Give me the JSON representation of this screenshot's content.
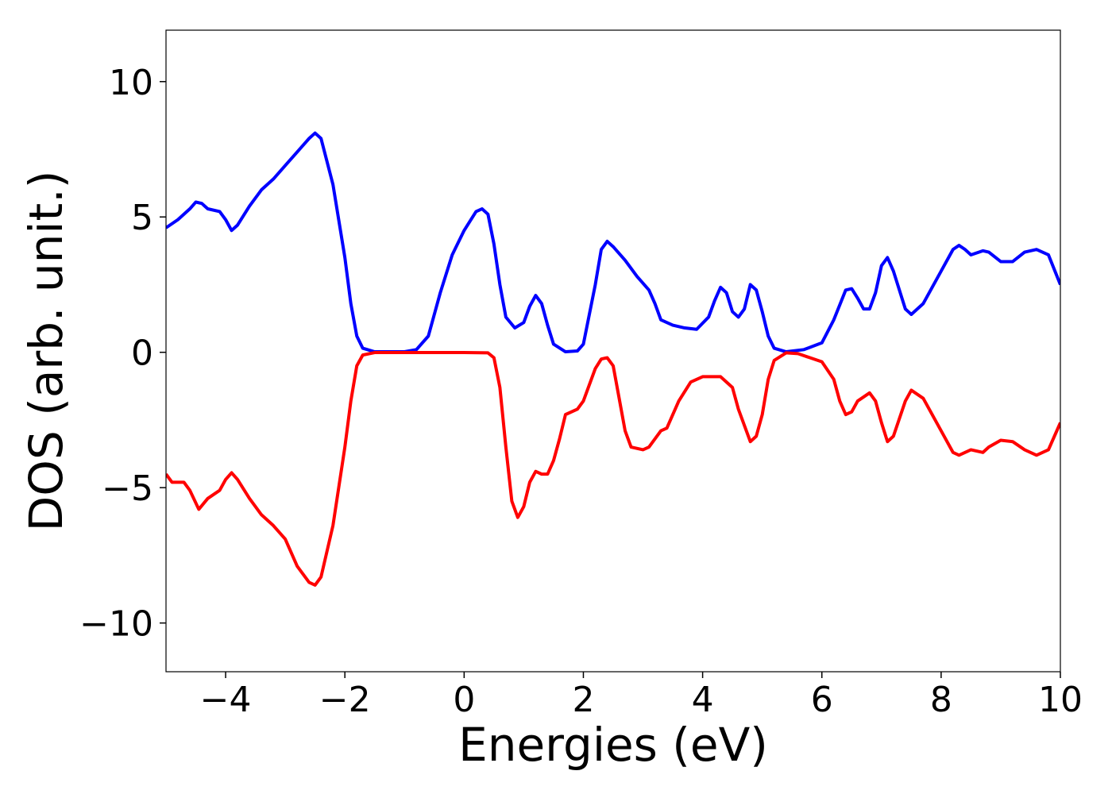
{
  "chart_data": {
    "type": "line",
    "xlabel": "Energies (eV)",
    "ylabel": "DOS (arb. unit.)",
    "xlim": [
      -5,
      10
    ],
    "ylim": [
      -11.8,
      11.9
    ],
    "xticks": [
      {
        "value": -4,
        "label": "−4"
      },
      {
        "value": -2,
        "label": "−2"
      },
      0,
      2,
      4,
      6,
      8,
      10
    ],
    "yticks": [
      {
        "value": -10,
        "label": "−10"
      },
      {
        "value": -5,
        "label": "−5"
      },
      0,
      5,
      10
    ],
    "grid": false,
    "series": [
      {
        "color": "#0000ff",
        "x": [
          -5,
          -4.8,
          -4.6,
          -4.5,
          -4.4,
          -4.3,
          -4.1,
          -4.0,
          -3.9,
          -3.8,
          -3.6,
          -3.4,
          -3.2,
          -3.0,
          -2.8,
          -2.6,
          -2.5,
          -2.4,
          -2.2,
          -2.0,
          -1.9,
          -1.8,
          -1.7,
          -1.5,
          -1.0,
          -0.8,
          -0.6,
          -0.4,
          -0.2,
          0,
          0.2,
          0.3,
          0.4,
          0.5,
          0.6,
          0.7,
          0.85,
          1.0,
          1.1,
          1.2,
          1.3,
          1.4,
          1.5,
          1.7,
          1.9,
          2.0,
          2.2,
          2.3,
          2.4,
          2.5,
          2.7,
          2.9,
          3.1,
          3.2,
          3.3,
          3.5,
          3.7,
          3.9,
          4.1,
          4.2,
          4.3,
          4.4,
          4.5,
          4.6,
          4.7,
          4.8,
          4.9,
          5.0,
          5.1,
          5.2,
          5.4,
          5.7,
          6.0,
          6.2,
          6.4,
          6.5,
          6.6,
          6.7,
          6.8,
          6.9,
          7.0,
          7.1,
          7.2,
          7.4,
          7.5,
          7.7,
          8.0,
          8.2,
          8.3,
          8.4,
          8.5,
          8.7,
          8.8,
          9.0,
          9.2,
          9.4,
          9.6,
          9.8,
          10
        ],
        "values": [
          4.6,
          4.9,
          5.3,
          5.55,
          5.5,
          5.3,
          5.2,
          4.9,
          4.5,
          4.7,
          5.4,
          6.0,
          6.4,
          6.9,
          7.4,
          7.9,
          8.1,
          7.9,
          6.2,
          3.5,
          1.8,
          0.6,
          0.15,
          0.02,
          0.02,
          0.1,
          0.6,
          2.2,
          3.6,
          4.5,
          5.2,
          5.3,
          5.1,
          4.0,
          2.5,
          1.3,
          0.9,
          1.1,
          1.7,
          2.1,
          1.8,
          1.0,
          0.3,
          0.02,
          0.05,
          0.3,
          2.5,
          3.8,
          4.1,
          3.9,
          3.4,
          2.8,
          2.3,
          1.8,
          1.2,
          1.0,
          0.9,
          0.85,
          1.3,
          1.9,
          2.4,
          2.2,
          1.5,
          1.3,
          1.6,
          2.5,
          2.3,
          1.5,
          0.6,
          0.15,
          0.02,
          0.1,
          0.35,
          1.2,
          2.3,
          2.35,
          2.0,
          1.6,
          1.6,
          2.2,
          3.2,
          3.5,
          3.0,
          1.6,
          1.4,
          1.8,
          3.0,
          3.8,
          3.95,
          3.8,
          3.6,
          3.75,
          3.7,
          3.35,
          3.35,
          3.7,
          3.8,
          3.6,
          2.5
        ]
      },
      {
        "color": "#ff0000",
        "x": [
          -5,
          -4.9,
          -4.7,
          -4.6,
          -4.45,
          -4.3,
          -4.1,
          -4.0,
          -3.9,
          -3.8,
          -3.6,
          -3.4,
          -3.2,
          -3.0,
          -2.8,
          -2.6,
          -2.5,
          -2.4,
          -2.2,
          -2.0,
          -1.9,
          -1.8,
          -1.7,
          -1.5,
          0,
          0.4,
          0.5,
          0.6,
          0.7,
          0.8,
          0.9,
          1.0,
          1.1,
          1.2,
          1.3,
          1.4,
          1.5,
          1.6,
          1.7,
          1.9,
          2.0,
          2.2,
          2.3,
          2.4,
          2.5,
          2.6,
          2.7,
          2.8,
          3.0,
          3.1,
          3.3,
          3.4,
          3.6,
          3.8,
          4.0,
          4.3,
          4.5,
          4.6,
          4.8,
          4.9,
          5.0,
          5.1,
          5.2,
          5.4,
          5.6,
          5.8,
          6.0,
          6.2,
          6.3,
          6.4,
          6.5,
          6.6,
          6.8,
          6.9,
          7.0,
          7.1,
          7.2,
          7.4,
          7.5,
          7.7,
          8.0,
          8.2,
          8.3,
          8.5,
          8.7,
          8.8,
          9.0,
          9.2,
          9.4,
          9.6,
          9.8,
          10
        ],
        "values": [
          -4.5,
          -4.8,
          -4.8,
          -5.1,
          -5.8,
          -5.4,
          -5.1,
          -4.7,
          -4.45,
          -4.7,
          -5.4,
          -6.0,
          -6.4,
          -6.9,
          -7.9,
          -8.5,
          -8.6,
          -8.3,
          -6.4,
          -3.5,
          -1.8,
          -0.5,
          -0.1,
          -0.01,
          -0.01,
          -0.02,
          -0.2,
          -1.3,
          -3.5,
          -5.5,
          -6.1,
          -5.7,
          -4.8,
          -4.4,
          -4.5,
          -4.5,
          -4.0,
          -3.2,
          -2.3,
          -2.1,
          -1.8,
          -0.6,
          -0.25,
          -0.2,
          -0.5,
          -1.7,
          -2.9,
          -3.5,
          -3.6,
          -3.5,
          -2.9,
          -2.8,
          -1.8,
          -1.1,
          -0.9,
          -0.9,
          -1.3,
          -2.1,
          -3.3,
          -3.1,
          -2.3,
          -1.0,
          -0.3,
          -0.02,
          -0.05,
          -0.2,
          -0.35,
          -1.0,
          -1.8,
          -2.3,
          -2.2,
          -1.8,
          -1.5,
          -1.8,
          -2.6,
          -3.3,
          -3.1,
          -1.8,
          -1.4,
          -1.7,
          -2.9,
          -3.7,
          -3.8,
          -3.6,
          -3.7,
          -3.5,
          -3.25,
          -3.3,
          -3.6,
          -3.8,
          -3.6,
          -2.6
        ]
      }
    ]
  }
}
